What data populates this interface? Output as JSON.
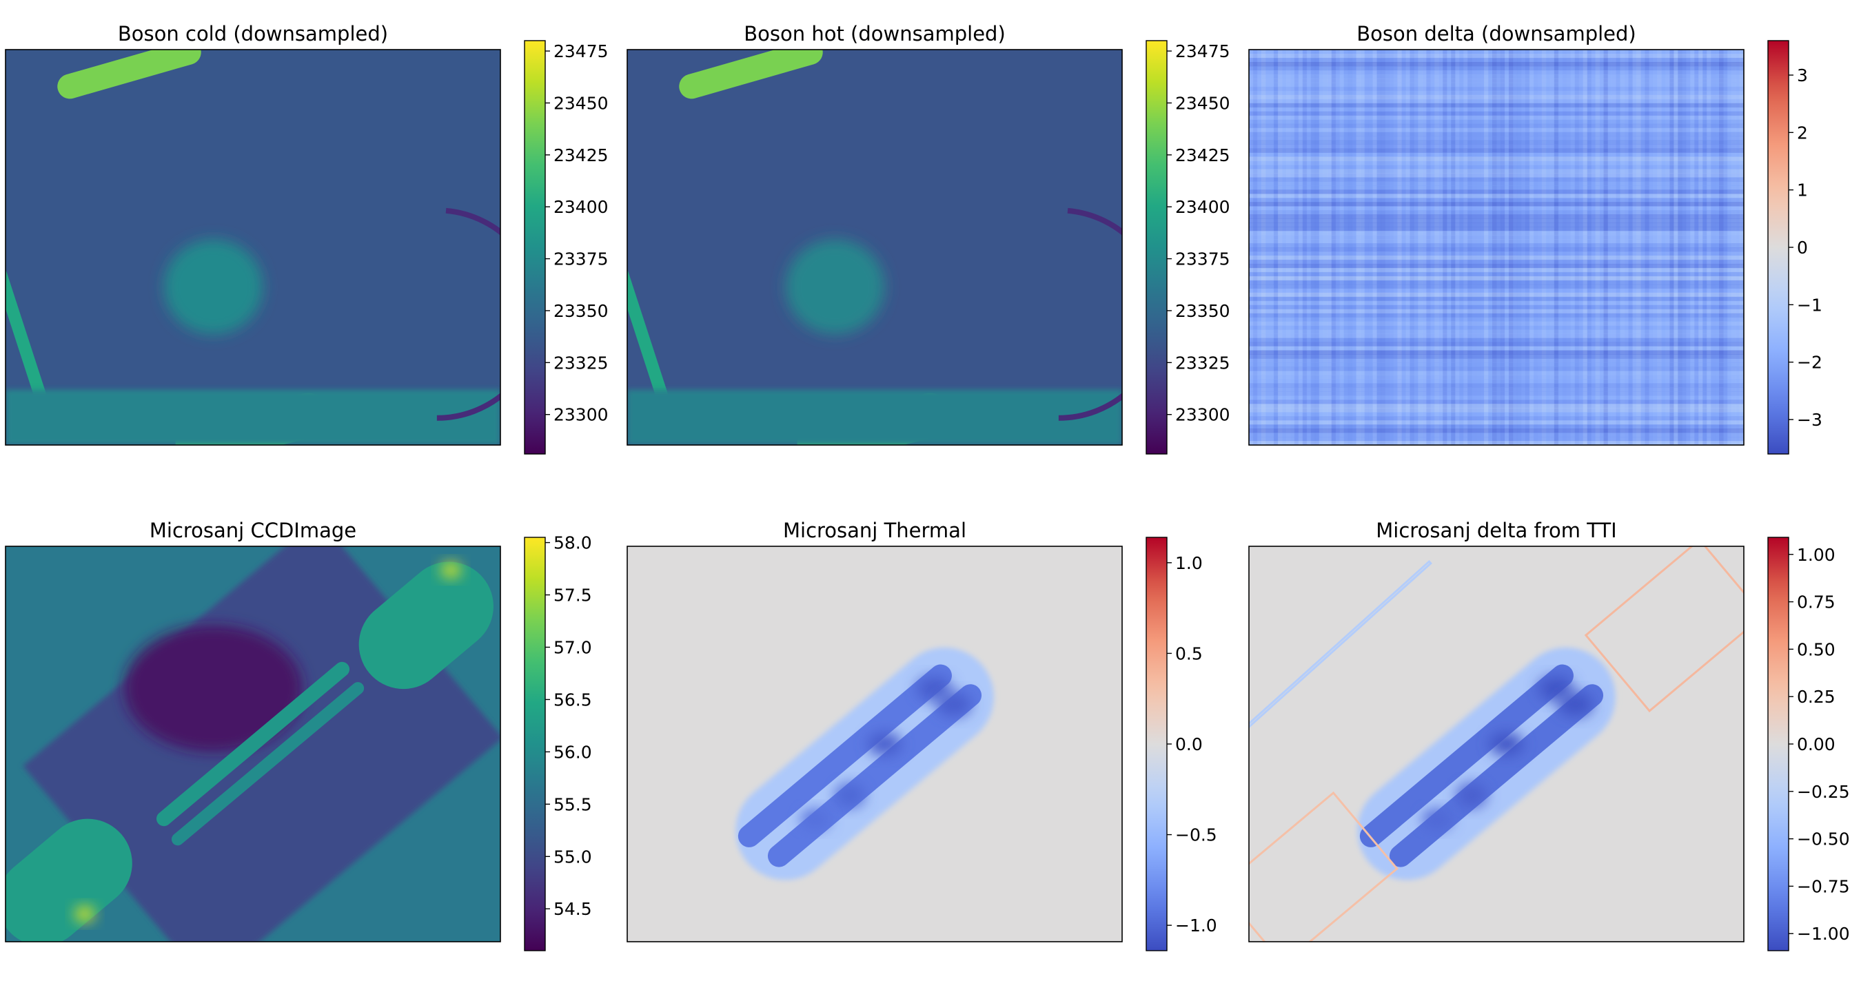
{
  "colors": {
    "viridis": [
      "#440154",
      "#482475",
      "#414487",
      "#355f8d",
      "#2a788e",
      "#21918c",
      "#22a884",
      "#44bf70",
      "#7ad151",
      "#bddf26",
      "#fde725"
    ],
    "coolwarm": [
      "#3b4cc0",
      "#6282ea",
      "#8db0fe",
      "#b8d0f9",
      "#dddcdc",
      "#f5c4ac",
      "#f49a7b",
      "#dd604d",
      "#b40426"
    ]
  },
  "chart_data": [
    {
      "type": "heatmap",
      "title": "Boson cold (downsampled)",
      "colormap": "viridis",
      "colorbar": {
        "range": [
          23281,
          23480
        ],
        "ticks": [
          23300,
          23325,
          23350,
          23375,
          23400,
          23425,
          23450,
          23475
        ],
        "tick_labels": [
          "23300",
          "23325",
          "23350",
          "23375",
          "23400",
          "23425",
          "23450",
          "23475"
        ]
      },
      "axes_ticks": false,
      "features": [
        {
          "kind": "background",
          "value": 23335
        },
        {
          "kind": "stripe",
          "cx": 0.25,
          "cy": 0.05,
          "len": 0.3,
          "wid": 0.05,
          "angle": -16,
          "value": 23440
        },
        {
          "kind": "stripe",
          "cx": 0.5,
          "cy": 0.96,
          "len": 0.32,
          "wid": 0.09,
          "angle": -14,
          "value": 23420
        },
        {
          "kind": "stripe",
          "cx": 0.03,
          "cy": 0.72,
          "len": 0.28,
          "wid": 0.025,
          "angle": 72,
          "value": 23400
        },
        {
          "kind": "band",
          "y0": 0.86,
          "y1": 1.0,
          "value": 23370
        },
        {
          "kind": "blob",
          "cx": 0.42,
          "cy": 0.6,
          "rx": 0.1,
          "ry": 0.12,
          "value": 23375
        },
        {
          "kind": "arc",
          "cx": 0.89,
          "cy": 0.67,
          "r": 0.21,
          "from": -90,
          "to": 95,
          "value": 23305
        }
      ]
    },
    {
      "type": "heatmap",
      "title": "Boson hot (downsampled)",
      "colormap": "viridis",
      "colorbar": {
        "range": [
          23281,
          23480
        ],
        "ticks": [
          23300,
          23325,
          23350,
          23375,
          23400,
          23425,
          23450,
          23475
        ],
        "tick_labels": [
          "23300",
          "23325",
          "23350",
          "23375",
          "23400",
          "23425",
          "23450",
          "23475"
        ]
      },
      "axes_ticks": false,
      "features": [
        {
          "kind": "background",
          "value": 23333
        },
        {
          "kind": "stripe",
          "cx": 0.25,
          "cy": 0.05,
          "len": 0.3,
          "wid": 0.05,
          "angle": -16,
          "value": 23440
        },
        {
          "kind": "stripe",
          "cx": 0.5,
          "cy": 0.96,
          "len": 0.32,
          "wid": 0.09,
          "angle": -14,
          "value": 23420
        },
        {
          "kind": "stripe",
          "cx": 0.03,
          "cy": 0.72,
          "len": 0.28,
          "wid": 0.025,
          "angle": 72,
          "value": 23400
        },
        {
          "kind": "band",
          "y0": 0.86,
          "y1": 1.0,
          "value": 23368
        },
        {
          "kind": "blob",
          "cx": 0.42,
          "cy": 0.6,
          "rx": 0.1,
          "ry": 0.12,
          "value": 23372
        },
        {
          "kind": "arc",
          "cx": 0.89,
          "cy": 0.67,
          "r": 0.21,
          "from": -90,
          "to": 95,
          "value": 23305
        }
      ]
    },
    {
      "type": "heatmap",
      "title": "Boson delta (downsampled)",
      "colormap": "coolwarm",
      "colorbar": {
        "range": [
          -3.6,
          3.6
        ],
        "ticks": [
          -3,
          -2,
          -1,
          0,
          1,
          2,
          3
        ],
        "tick_labels": [
          "−3",
          "−2",
          "−1",
          "0",
          "1",
          "2",
          "3"
        ]
      },
      "axes_ticks": false,
      "features": [
        {
          "kind": "noise",
          "mean": -2.0,
          "spread": 1.2
        }
      ]
    },
    {
      "type": "heatmap",
      "title": "Microsanj CCDImage",
      "colormap": "viridis",
      "colorbar": {
        "range": [
          54.1,
          58.05
        ],
        "ticks": [
          54.5,
          55.0,
          55.5,
          56.0,
          56.5,
          57.0,
          57.5,
          58.0
        ],
        "tick_labels": [
          "54.5",
          "55.0",
          "55.5",
          "56.0",
          "56.5",
          "57.0",
          "57.5",
          "58.0"
        ]
      },
      "axes_ticks": false,
      "features": [
        {
          "kind": "background",
          "value": 55.7
        },
        {
          "kind": "rotated_rect",
          "cx": 0.52,
          "cy": 0.52,
          "len": 0.78,
          "wid": 0.58,
          "angle": -40,
          "value": 55.0
        },
        {
          "kind": "blob",
          "cx": 0.42,
          "cy": 0.36,
          "rx": 0.18,
          "ry": 0.16,
          "value": 54.3
        },
        {
          "kind": "stripe",
          "cx": 0.5,
          "cy": 0.5,
          "len": 0.5,
          "wid": 0.03,
          "angle": -40,
          "value": 56.2
        },
        {
          "kind": "stripe",
          "cx": 0.53,
          "cy": 0.55,
          "len": 0.5,
          "wid": 0.025,
          "angle": -40,
          "value": 56.0
        },
        {
          "kind": "stripe",
          "cx": 0.85,
          "cy": 0.2,
          "len": 0.3,
          "wid": 0.18,
          "angle": -40,
          "value": 56.3
        },
        {
          "kind": "stripe",
          "cx": 0.12,
          "cy": 0.85,
          "len": 0.3,
          "wid": 0.18,
          "angle": -40,
          "value": 56.3
        },
        {
          "kind": "blob",
          "cx": 0.9,
          "cy": 0.06,
          "rx": 0.02,
          "ry": 0.02,
          "value": 57.8
        },
        {
          "kind": "blob",
          "cx": 0.16,
          "cy": 0.93,
          "rx": 0.02,
          "ry": 0.02,
          "value": 57.8
        }
      ]
    },
    {
      "type": "heatmap",
      "title": "Microsanj Thermal",
      "colormap": "coolwarm",
      "colorbar": {
        "range": [
          -1.14,
          1.14
        ],
        "ticks": [
          -1.0,
          -0.5,
          0.0,
          0.5,
          1.0
        ],
        "tick_labels": [
          "−1.0",
          "−0.5",
          "0.0",
          "0.5",
          "1.0"
        ]
      },
      "axes_ticks": false,
      "features": [
        {
          "kind": "background",
          "value": 0.0
        },
        {
          "kind": "stripe",
          "cx": 0.48,
          "cy": 0.55,
          "len": 0.62,
          "wid": 0.2,
          "angle": -40,
          "value": -0.35,
          "blur": 0.03
        },
        {
          "kind": "stripe",
          "cx": 0.44,
          "cy": 0.53,
          "len": 0.55,
          "wid": 0.045,
          "angle": -40,
          "value": -0.9
        },
        {
          "kind": "stripe",
          "cx": 0.5,
          "cy": 0.58,
          "len": 0.55,
          "wid": 0.045,
          "angle": -40,
          "value": -0.9
        },
        {
          "kind": "blob",
          "cx": 0.62,
          "cy": 0.36,
          "rx": 0.035,
          "ry": 0.03,
          "value": -1.05
        },
        {
          "kind": "blob",
          "cx": 0.66,
          "cy": 0.4,
          "rx": 0.035,
          "ry": 0.03,
          "value": -1.05
        },
        {
          "kind": "blob",
          "cx": 0.52,
          "cy": 0.5,
          "rx": 0.035,
          "ry": 0.03,
          "value": -1.05
        },
        {
          "kind": "blob",
          "cx": 0.45,
          "cy": 0.63,
          "rx": 0.03,
          "ry": 0.03,
          "value": -1.0
        },
        {
          "kind": "blob",
          "cx": 0.38,
          "cy": 0.69,
          "rx": 0.03,
          "ry": 0.025,
          "value": -0.95
        }
      ]
    },
    {
      "type": "heatmap",
      "title": "Microsanj delta from TTI",
      "colormap": "coolwarm",
      "colorbar": {
        "range": [
          -1.09,
          1.09
        ],
        "ticks": [
          -1.0,
          -0.75,
          -0.5,
          -0.25,
          0.0,
          0.25,
          0.5,
          0.75,
          1.0
        ],
        "tick_labels": [
          "−1.00",
          "−0.75",
          "−0.50",
          "−0.25",
          "0.00",
          "0.25",
          "0.50",
          "0.75",
          "1.00"
        ]
      },
      "axes_ticks": false,
      "features": [
        {
          "kind": "background",
          "value": 0.0
        },
        {
          "kind": "stripe",
          "cx": 0.48,
          "cy": 0.55,
          "len": 0.62,
          "wid": 0.2,
          "angle": -40,
          "value": -0.35,
          "blur": 0.03
        },
        {
          "kind": "stripe",
          "cx": 0.44,
          "cy": 0.53,
          "len": 0.55,
          "wid": 0.045,
          "angle": -40,
          "value": -0.9
        },
        {
          "kind": "stripe",
          "cx": 0.5,
          "cy": 0.58,
          "len": 0.55,
          "wid": 0.045,
          "angle": -40,
          "value": -0.9
        },
        {
          "kind": "blob",
          "cx": 0.62,
          "cy": 0.36,
          "rx": 0.035,
          "ry": 0.03,
          "value": -1.05
        },
        {
          "kind": "blob",
          "cx": 0.66,
          "cy": 0.4,
          "rx": 0.035,
          "ry": 0.03,
          "value": -1.05
        },
        {
          "kind": "blob",
          "cx": 0.52,
          "cy": 0.5,
          "rx": 0.035,
          "ry": 0.03,
          "value": -1.05
        },
        {
          "kind": "blob",
          "cx": 0.45,
          "cy": 0.63,
          "rx": 0.03,
          "ry": 0.03,
          "value": -1.0
        },
        {
          "kind": "blob",
          "cx": 0.38,
          "cy": 0.69,
          "rx": 0.03,
          "ry": 0.025,
          "value": -0.95
        },
        {
          "kind": "outline",
          "cx": 0.86,
          "cy": 0.2,
          "len": 0.3,
          "wid": 0.2,
          "angle": -40,
          "value": 0.35
        },
        {
          "kind": "outline",
          "cx": 0.12,
          "cy": 0.84,
          "len": 0.3,
          "wid": 0.2,
          "angle": -40,
          "value": 0.3
        },
        {
          "kind": "outline",
          "cx": 0.18,
          "cy": 0.25,
          "len": 0.5,
          "wid": 0.005,
          "angle": -42,
          "value": -0.3
        }
      ]
    }
  ]
}
